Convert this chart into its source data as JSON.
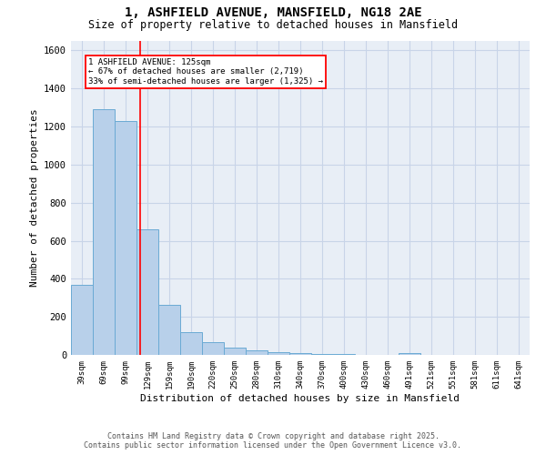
{
  "title_line1": "1, ASHFIELD AVENUE, MANSFIELD, NG18 2AE",
  "title_line2": "Size of property relative to detached houses in Mansfield",
  "xlabel": "Distribution of detached houses by size in Mansfield",
  "ylabel": "Number of detached properties",
  "footer_line1": "Contains HM Land Registry data © Crown copyright and database right 2025.",
  "footer_line2": "Contains public sector information licensed under the Open Government Licence v3.0.",
  "bar_labels": [
    "39sqm",
    "69sqm",
    "99sqm",
    "129sqm",
    "159sqm",
    "190sqm",
    "220sqm",
    "250sqm",
    "280sqm",
    "310sqm",
    "340sqm",
    "370sqm",
    "400sqm",
    "430sqm",
    "460sqm",
    "491sqm",
    "521sqm",
    "551sqm",
    "581sqm",
    "611sqm",
    "641sqm"
  ],
  "bar_values": [
    370,
    1290,
    1230,
    660,
    265,
    120,
    65,
    38,
    25,
    15,
    8,
    5,
    3,
    2,
    0,
    10,
    0,
    0,
    0,
    0,
    0
  ],
  "bar_color": "#b8d0ea",
  "bar_edgecolor": "#6aaad4",
  "grid_color": "#c8d4e8",
  "background_color": "#e8eef6",
  "annotation_text": "1 ASHFIELD AVENUE: 125sqm\n← 67% of detached houses are smaller (2,719)\n33% of semi-detached houses are larger (1,325) →",
  "redline_x": 2.67,
  "annotation_box_color": "white",
  "annotation_box_edgecolor": "red",
  "redline_color": "red",
  "ylim": [
    0,
    1650
  ],
  "yticks": [
    0,
    200,
    400,
    600,
    800,
    1000,
    1200,
    1400,
    1600
  ]
}
